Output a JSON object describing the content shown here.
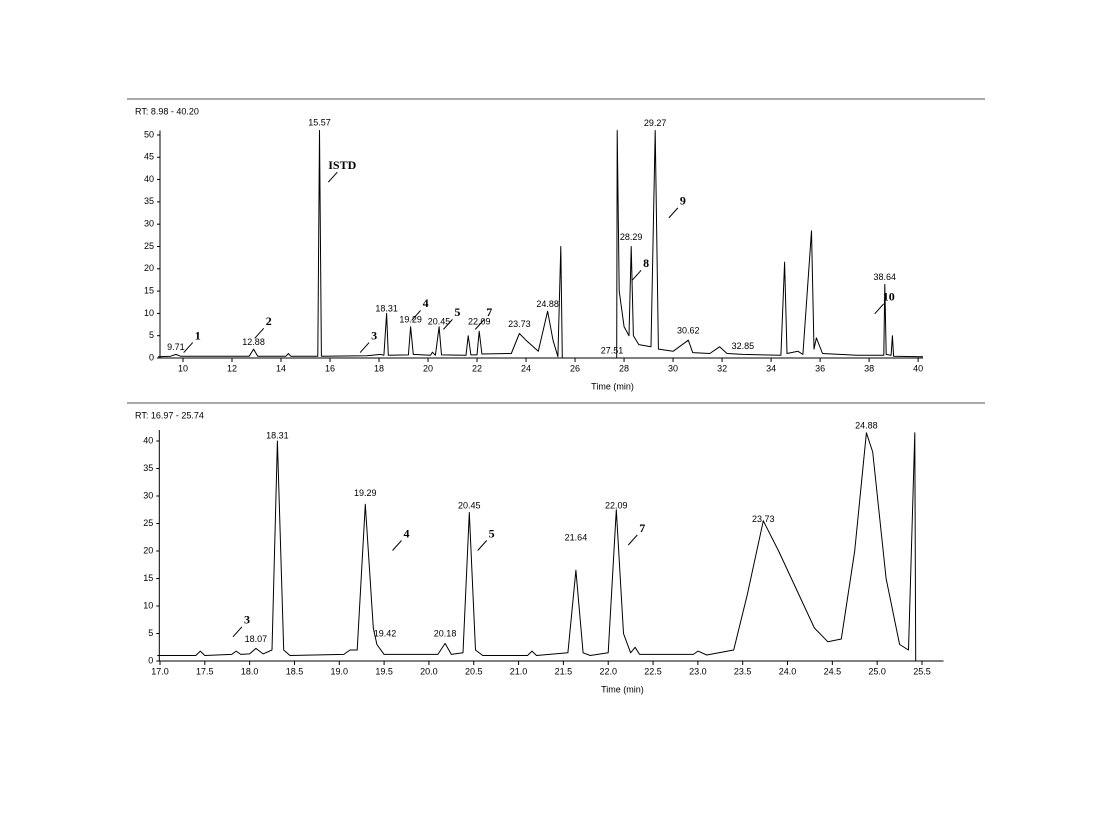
{
  "chart_data": [
    {
      "type": "line",
      "title": "RT: 8.98 - 40.20",
      "xlabel": "Time (min)",
      "color": "#000000",
      "xlim": [
        8.98,
        40.2
      ],
      "ylim": [
        0,
        51
      ],
      "xticks": [
        10,
        12,
        14,
        16,
        18,
        20,
        22,
        24,
        26,
        28,
        30,
        32,
        34,
        36,
        38,
        40
      ],
      "yticks": [
        0,
        5,
        10,
        15,
        20,
        25,
        30,
        35,
        40,
        45,
        50
      ],
      "x": [
        8.98,
        9.5,
        9.71,
        9.9,
        12.7,
        12.88,
        13.05,
        14.2,
        14.3,
        14.4,
        15.5,
        15.57,
        15.65,
        17.5,
        18.07,
        18.2,
        18.31,
        18.38,
        19.2,
        19.29,
        19.4,
        20.1,
        20.18,
        20.3,
        20.45,
        20.55,
        21.55,
        21.64,
        21.75,
        22.0,
        22.09,
        22.2,
        23.4,
        23.73,
        24.0,
        24.5,
        24.88,
        25.1,
        25.3,
        25.42,
        25.48,
        27.7,
        27.72,
        27.8,
        28.0,
        28.2,
        28.29,
        28.38,
        28.6,
        29.1,
        29.27,
        29.4,
        30.0,
        30.62,
        30.8,
        31.5,
        31.9,
        32.2,
        32.85,
        34.4,
        34.55,
        34.65,
        35.1,
        35.3,
        35.65,
        35.75,
        35.85,
        36.1,
        37.5,
        38.6,
        38.64,
        38.7,
        38.9,
        38.95,
        39.0,
        40.2
      ],
      "values": [
        0.3,
        0.4,
        0.8,
        0.4,
        0.4,
        2,
        0.4,
        0.4,
        1,
        0.4,
        0.4,
        51,
        0.4,
        0.5,
        0.8,
        0.6,
        10,
        0.6,
        0.7,
        7,
        0.8,
        0.6,
        1.3,
        0.6,
        7,
        0.7,
        0.6,
        5,
        0.7,
        0.7,
        6,
        0.9,
        1,
        5.5,
        4,
        1.5,
        10.5,
        4,
        0.3,
        25,
        0,
        0,
        51,
        15,
        7,
        5,
        25,
        5,
        3,
        2.5,
        51,
        2,
        1.5,
        4,
        1.2,
        1,
        2.5,
        1,
        0.8,
        0.6,
        21.5,
        1,
        1.5,
        0.8,
        28.5,
        2,
        4.5,
        1,
        0.6,
        0.6,
        16.5,
        0.8,
        0.6,
        5,
        0.4,
        0.3
      ],
      "peak_labels": [
        {
          "text": "9.71",
          "x": 9.71,
          "y": 2.3
        },
        {
          "text": "12.88",
          "x": 12.88,
          "y": 3.5
        },
        {
          "text": "15.57",
          "x": 15.57,
          "y": 52.7
        },
        {
          "text": "18.31",
          "x": 18.31,
          "y": 11
        },
        {
          "text": "19.29",
          "x": 19.29,
          "y": 8.5
        },
        {
          "text": "20.45",
          "x": 20.45,
          "y": 8
        },
        {
          "text": "22.09",
          "x": 22.09,
          "y": 8
        },
        {
          "text": "23.73",
          "x": 23.73,
          "y": 7.5
        },
        {
          "text": "24.88",
          "x": 24.88,
          "y": 12
        },
        {
          "text": "27.51",
          "x": 27.51,
          "y": 1.5
        },
        {
          "text": "28.29",
          "x": 28.29,
          "y": 27
        },
        {
          "text": "29.27",
          "x": 29.27,
          "y": 52.5
        },
        {
          "text": "30.62",
          "x": 30.62,
          "y": 6
        },
        {
          "text": "32.85",
          "x": 32.85,
          "y": 2.5
        },
        {
          "text": "38.64",
          "x": 38.64,
          "y": 18
        }
      ],
      "compound_labels": [
        {
          "text": "1",
          "x": 10.6,
          "y": 4.8
        },
        {
          "text": "2",
          "x": 13.5,
          "y": 8
        },
        {
          "text": "ISTD",
          "x": 16.5,
          "y": 43
        },
        {
          "text": "3",
          "x": 17.8,
          "y": 4.8
        },
        {
          "text": "4",
          "x": 19.9,
          "y": 12
        },
        {
          "text": "5",
          "x": 21.2,
          "y": 10
        },
        {
          "text": "7",
          "x": 22.5,
          "y": 10
        },
        {
          "text": "8",
          "x": 28.9,
          "y": 21
        },
        {
          "text": "9",
          "x": 30.4,
          "y": 35
        },
        {
          "text": "10",
          "x": 38.8,
          "y": 13.5
        }
      ]
    },
    {
      "type": "line",
      "title": "RT: 16.97 - 25.74",
      "xlabel": "Time (min)",
      "color": "#000000",
      "xlim": [
        16.97,
        25.74
      ],
      "ylim": [
        0,
        42
      ],
      "xticks": [
        {
          "value": 17,
          "label": "17.0"
        },
        17.5,
        {
          "value": 18,
          "label": "18.0"
        },
        18.5,
        {
          "value": 19,
          "label": "19.0"
        },
        19.5,
        {
          "value": 20,
          "label": "20.0"
        },
        20.5,
        {
          "value": 21,
          "label": "21.0"
        },
        21.5,
        {
          "value": 22,
          "label": "22.0"
        },
        22.5,
        {
          "value": 23,
          "label": "23.0"
        },
        23.5,
        {
          "value": 24,
          "label": "24.0"
        },
        24.5,
        {
          "value": 25,
          "label": "25.0"
        },
        25.5
      ],
      "yticks": [
        0,
        5,
        10,
        15,
        20,
        25,
        30,
        35,
        40
      ],
      "x": [
        16.97,
        17.4,
        17.45,
        17.5,
        17.8,
        17.85,
        17.9,
        18.0,
        18.07,
        18.15,
        18.25,
        18.31,
        18.38,
        18.45,
        19.05,
        19.12,
        19.2,
        19.29,
        19.38,
        19.42,
        19.5,
        20.1,
        20.18,
        20.25,
        20.38,
        20.45,
        20.52,
        20.6,
        21.1,
        21.15,
        21.2,
        21.55,
        21.64,
        21.72,
        21.8,
        22.0,
        22.09,
        22.17,
        22.25,
        22.3,
        22.35,
        22.95,
        23.0,
        23.1,
        23.4,
        23.55,
        23.73,
        23.9,
        24.1,
        24.3,
        24.45,
        24.6,
        24.75,
        24.88,
        24.95,
        25.1,
        25.25,
        25.35,
        25.42,
        25.43,
        25.74
      ],
      "values": [
        1,
        1,
        1.8,
        1,
        1.2,
        1.8,
        1.2,
        1.3,
        2.3,
        1.3,
        2,
        40,
        2,
        1,
        1.2,
        2,
        2,
        28.5,
        6,
        3,
        1.2,
        1.2,
        3.2,
        1.2,
        1.5,
        27,
        2,
        1,
        1,
        1.8,
        1,
        1.5,
        16.5,
        1.5,
        1,
        1.5,
        27.5,
        5,
        1.5,
        2.5,
        1.2,
        1.2,
        1.8,
        1.1,
        2,
        12,
        25.5,
        20,
        13,
        6,
        3.5,
        4,
        20,
        41.5,
        38,
        15,
        3,
        2,
        41.5,
        0,
        0
      ],
      "peak_labels": [
        {
          "text": "18.07",
          "x": 18.07,
          "y": 3.9
        },
        {
          "text": "18.31",
          "x": 18.31,
          "y": 40.9
        },
        {
          "text": "19.29",
          "x": 19.29,
          "y": 30.4
        },
        {
          "text": "19.42",
          "x": 19.51,
          "y": 4.9
        },
        {
          "text": "20.18",
          "x": 20.18,
          "y": 4.9
        },
        {
          "text": "20.45",
          "x": 20.45,
          "y": 28.2
        },
        {
          "text": "21.64",
          "x": 21.64,
          "y": 22.3
        },
        {
          "text": "22.09",
          "x": 22.09,
          "y": 28.2
        },
        {
          "text": "23.73",
          "x": 23.73,
          "y": 25.7
        },
        {
          "text": "24.88",
          "x": 24.88,
          "y": 42.7
        }
      ],
      "compound_labels": [
        {
          "text": "3",
          "x": 17.97,
          "y": 7.3
        },
        {
          "text": "4",
          "x": 19.75,
          "y": 23
        },
        {
          "text": "5",
          "x": 20.7,
          "y": 23
        },
        {
          "text": "7",
          "x": 22.38,
          "y": 24
        }
      ]
    }
  ]
}
